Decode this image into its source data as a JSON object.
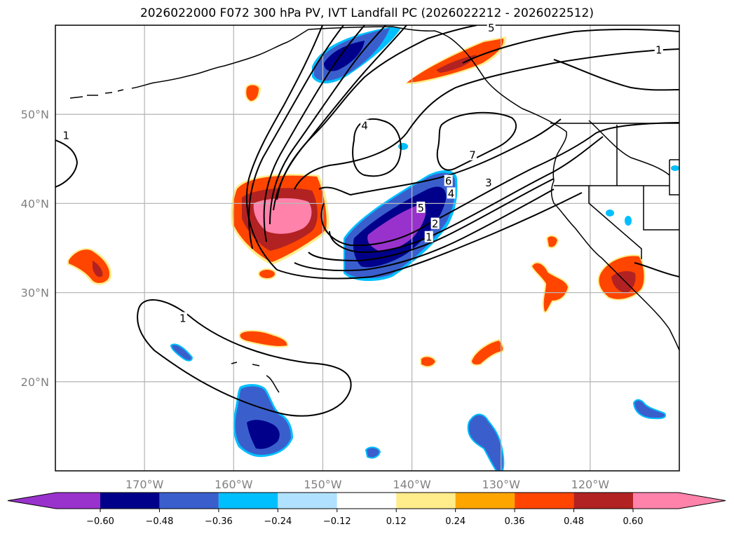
{
  "title": "2026022000 F072 300 hPa PV, IVT Landfall PC (2026022212 - 2026022512)",
  "map": {
    "projection": "PlateCarree",
    "lon_range": [
      -180,
      -110
    ],
    "lat_range": [
      10,
      60
    ],
    "gridlines": true,
    "lon_ticks": [
      {
        "value": -170,
        "label": "170°W"
      },
      {
        "value": -160,
        "label": "160°W"
      },
      {
        "value": -150,
        "label": "150°W"
      },
      {
        "value": -140,
        "label": "140°W"
      },
      {
        "value": -130,
        "label": "130°W"
      },
      {
        "value": -120,
        "label": "120°W"
      }
    ],
    "lat_ticks": [
      {
        "value": 50,
        "label": "50°N"
      },
      {
        "value": 40,
        "label": "40°N"
      },
      {
        "value": 30,
        "label": "30°N"
      },
      {
        "value": 20,
        "label": "20°N"
      }
    ]
  },
  "colorbar": {
    "extend": "both",
    "colors": [
      "#9932CC",
      "#00008B",
      "#3A5FCD",
      "#00BFFF",
      "#B0E2FF",
      "#FFFFFF",
      "#FFEC8B",
      "#FFA500",
      "#FF4500",
      "#B22222",
      "#FF82AB"
    ],
    "tick_labels": [
      "−0.60",
      "−0.48",
      "−0.36",
      "−0.24",
      "−0.12",
      "0.12",
      "0.24",
      "0.36",
      "0.48",
      "0.60"
    ],
    "levels": [
      -0.6,
      -0.48,
      -0.36,
      -0.24,
      -0.12,
      0.12,
      0.24,
      0.36,
      0.48,
      0.6
    ]
  },
  "contour_labels": [
    {
      "text": "1",
      "lon": -178.8,
      "lat": 47.6
    },
    {
      "text": "4",
      "lon": -145.3,
      "lat": 48.7
    },
    {
      "text": "7",
      "lon": -133.2,
      "lat": 45.4
    },
    {
      "text": "3",
      "lon": -131.4,
      "lat": 42.3
    },
    {
      "text": "6",
      "lon": -135.9,
      "lat": 42.5
    },
    {
      "text": "4",
      "lon": -135.6,
      "lat": 41.1
    },
    {
      "text": "5",
      "lon": -139.0,
      "lat": 39.5
    },
    {
      "text": "2",
      "lon": -137.4,
      "lat": 37.7
    },
    {
      "text": "1",
      "lon": -138.1,
      "lat": 36.2
    },
    {
      "text": "1",
      "lon": -165.7,
      "lat": 27.1
    },
    {
      "text": "5",
      "lon": -131.1,
      "lat": 59.7
    },
    {
      "text": "1",
      "lon": -112.3,
      "lat": 57.2
    }
  ]
}
